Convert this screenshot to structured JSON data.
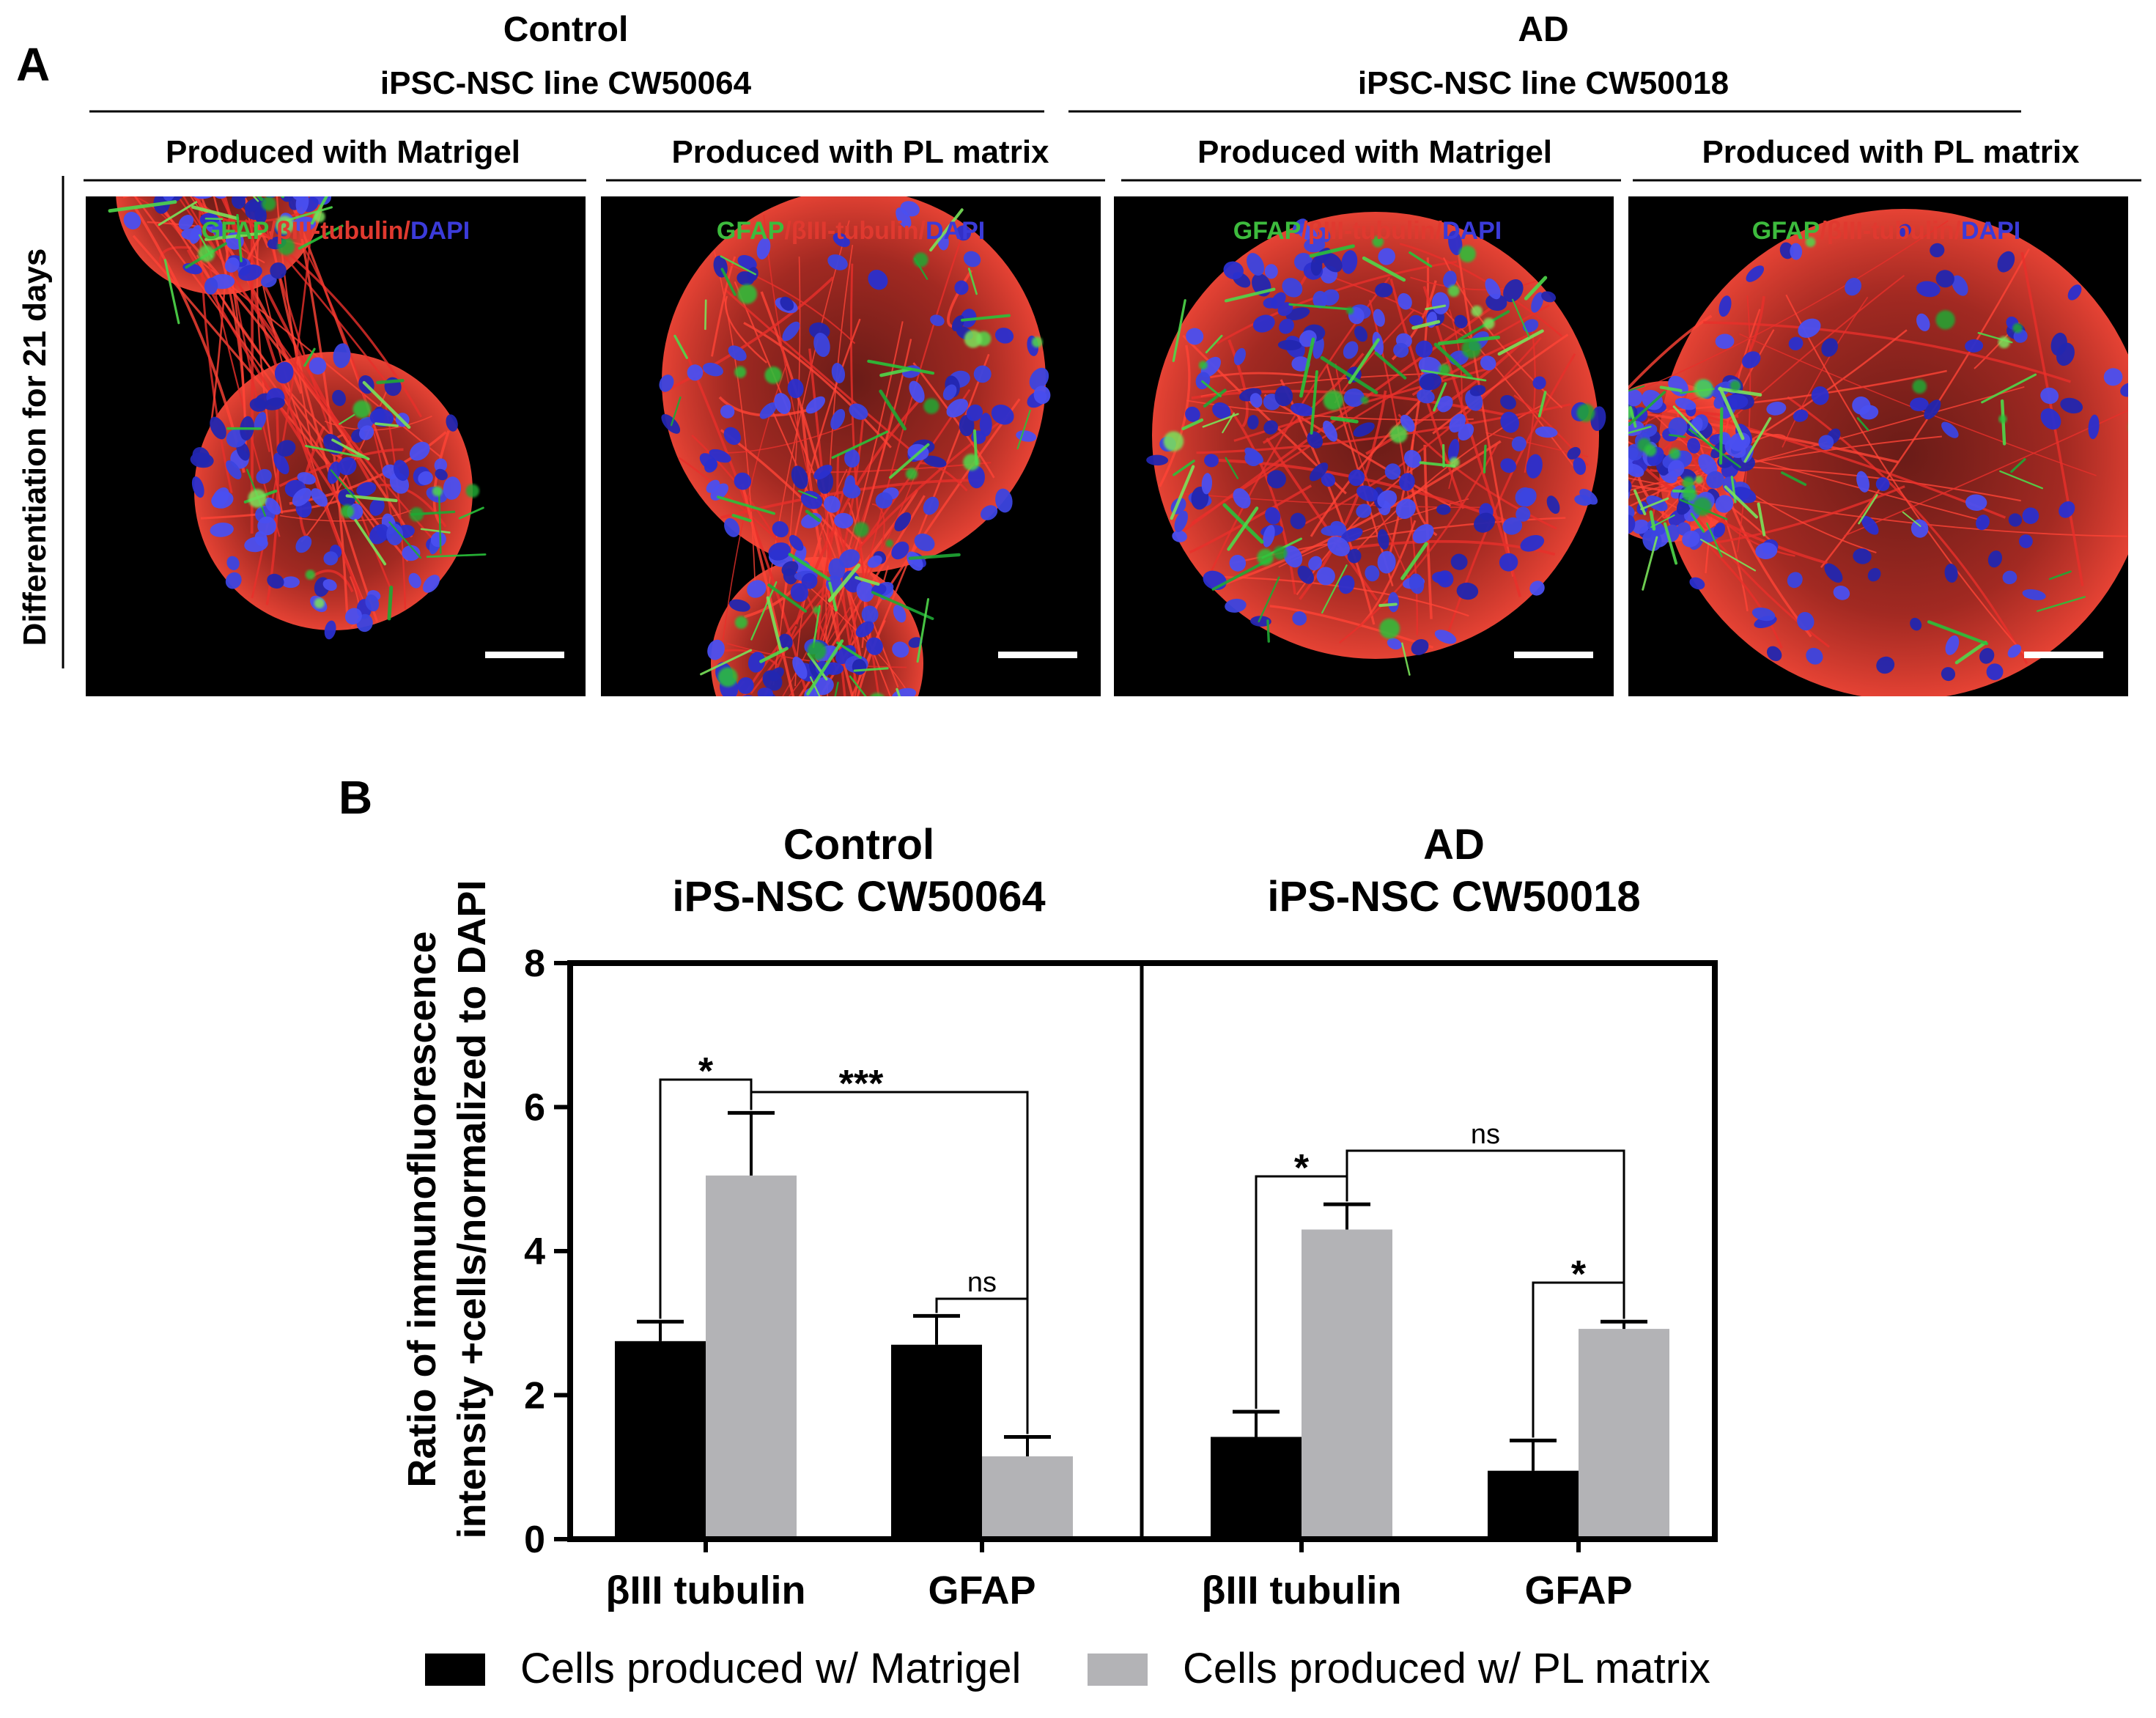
{
  "panel_a": {
    "label": "A",
    "groups": [
      {
        "name": "Control",
        "line": "iPSC-NSC line CW50064"
      },
      {
        "name": "AD",
        "line": "iPSC-NSC line CW50018"
      }
    ],
    "conditions": [
      "Produced with Matrigel",
      "Produced with PL matrix",
      "Produced with Matrigel",
      "Produced with PL matrix"
    ],
    "row_label": "Differentiation for 21 days",
    "stain": {
      "gfap": "GFAP",
      "sep": "/",
      "tubulin": "βIII-tubulin",
      "dapi": "DAPI"
    },
    "stain_colors": {
      "gfap": "#3dbb3d",
      "tubulin": "#e0392f",
      "dapi": "#3b3bd9"
    }
  },
  "panel_b": {
    "label": "B"
  },
  "chart_data": {
    "type": "bar",
    "ylabel_line1": "Ratio of immunofluorescence",
    "ylabel_line2": "intensity +cells/normalized to DAPI",
    "ylim": [
      0,
      8
    ],
    "yticks": [
      "0",
      "2",
      "4",
      "6",
      "8"
    ],
    "grid": false,
    "legend_position": "bottom",
    "groups": [
      {
        "title_line1": "Control",
        "title_line2": "iPS-NSC CW50064",
        "categories": [
          "βIII tubulin",
          "GFAP"
        ]
      },
      {
        "title_line1": "AD",
        "title_line2": "iPS-NSC CW50018",
        "categories": [
          "βIII tubulin",
          "GFAP"
        ]
      }
    ],
    "series": [
      {
        "name": "Cells produced w/ Matrigel",
        "color": "#000000",
        "values": [
          2.75,
          2.7,
          1.42,
          0.95
        ],
        "errors": [
          0.27,
          0.4,
          0.35,
          0.42
        ]
      },
      {
        "name": "Cells produced w/ PL matrix",
        "color": "#b3b3b6",
        "values": [
          5.05,
          1.15,
          4.3,
          2.92
        ],
        "errors": [
          0.87,
          0.27,
          0.35,
          0.1
        ]
      }
    ],
    "annotations": [
      {
        "text": "*",
        "group": 0,
        "from": [
          0,
          0
        ],
        "to": [
          0,
          1
        ]
      },
      {
        "text": "***",
        "group": 0,
        "from": [
          0,
          1
        ],
        "to": [
          1,
          1
        ]
      },
      {
        "text": "ns",
        "group": 0,
        "from": [
          1,
          0
        ],
        "to": [
          1,
          1
        ]
      },
      {
        "text": "*",
        "group": 1,
        "from": [
          0,
          0
        ],
        "to": [
          0,
          1
        ]
      },
      {
        "text": "ns",
        "group": 1,
        "from": [
          0,
          1
        ],
        "to": [
          1,
          1
        ]
      },
      {
        "text": "*",
        "group": 1,
        "from": [
          1,
          0
        ],
        "to": [
          1,
          1
        ]
      }
    ]
  }
}
